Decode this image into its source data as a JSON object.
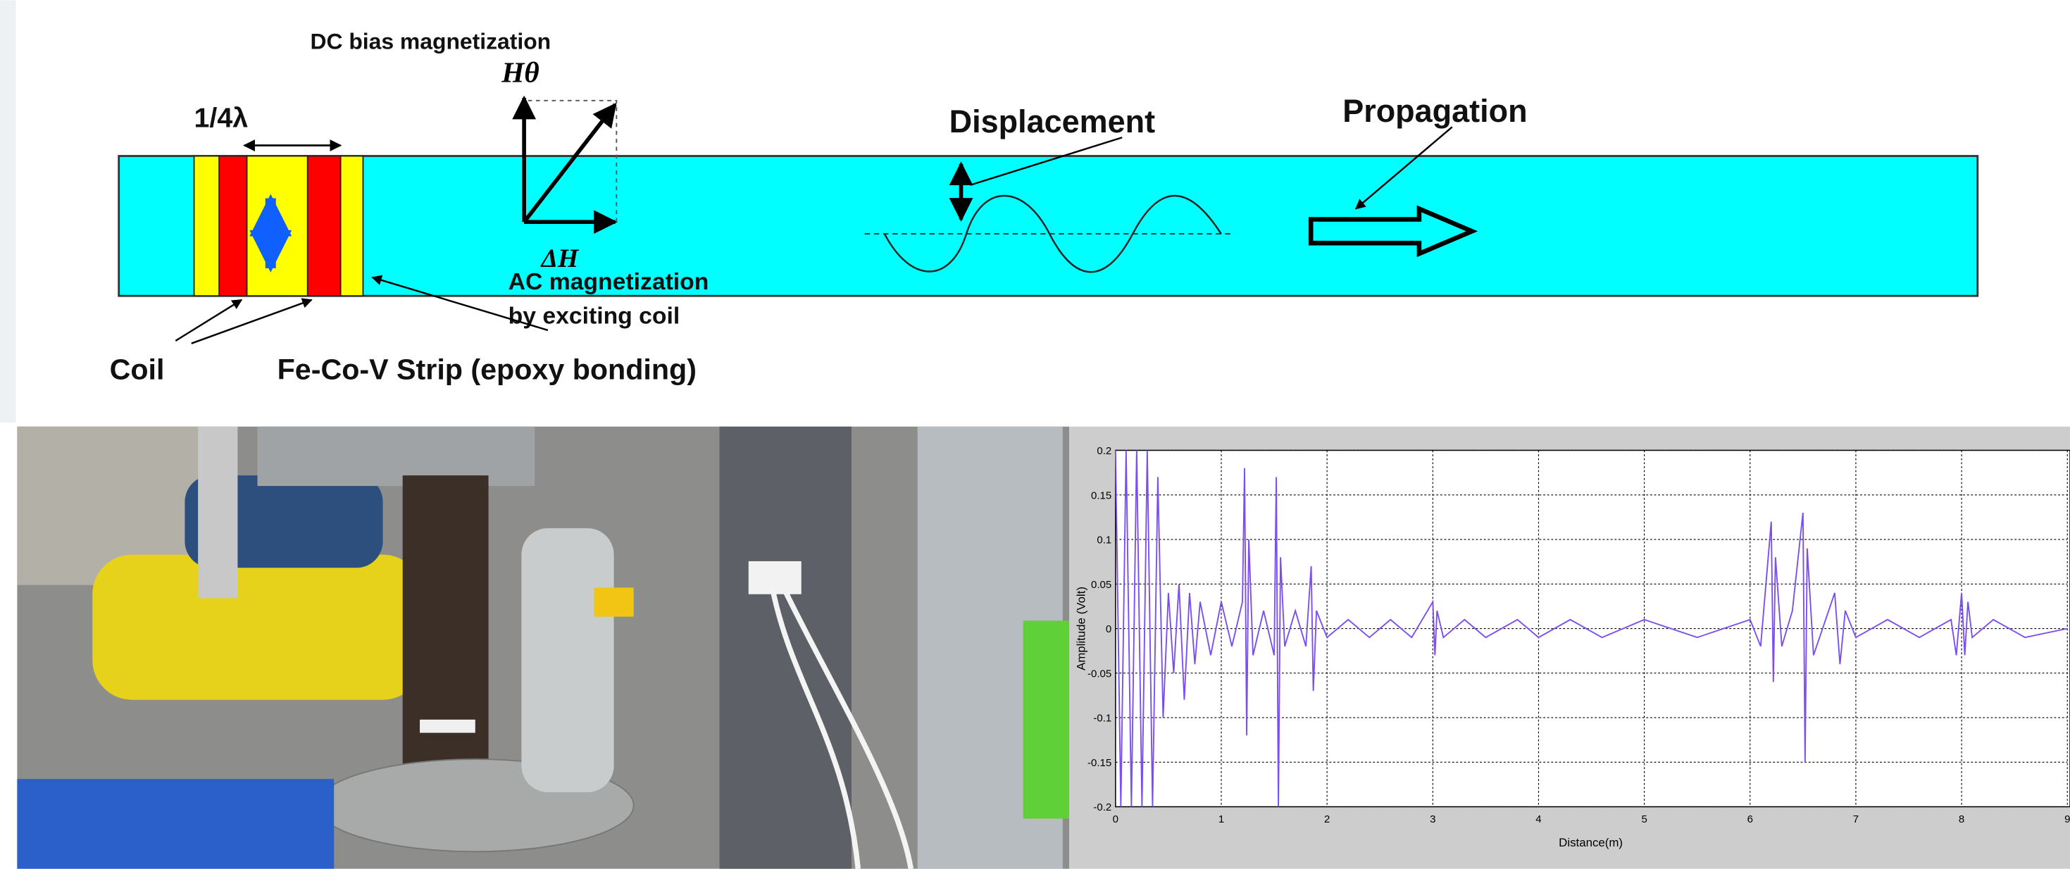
{
  "diagram": {
    "dc_bias": "DC bias magnetization",
    "h0": "Hθ",
    "quarter_lambda": "1/4λ",
    "displacement": "Displacement",
    "propagation": "Propagation",
    "delta_h": "ΔH",
    "ac_magnetization": "AC magnetization",
    "exciting_coil": "by exciting coil",
    "coil": "Coil",
    "strip": "Fe-Co-V Strip (epoxy bonding)"
  },
  "chart": {
    "type": "line",
    "x_label": "Distance(m)",
    "y_label": "Amplitude (Volt)",
    "xlim": [
      0,
      9
    ],
    "ylim": [
      -0.2,
      0.2
    ],
    "xticks": [
      0,
      1,
      2,
      3,
      4,
      5,
      6,
      7,
      8,
      9
    ],
    "yticks": [
      0.2,
      0.15,
      0.1,
      0.05,
      0,
      -0.05,
      -0.1,
      -0.15,
      -0.2
    ],
    "grid": true,
    "color": "#7a4ef0",
    "x": [
      0,
      0.05,
      0.1,
      0.15,
      0.2,
      0.25,
      0.3,
      0.35,
      0.4,
      0.45,
      0.5,
      0.55,
      0.6,
      0.65,
      0.7,
      0.75,
      0.8,
      0.9,
      1.0,
      1.1,
      1.2,
      1.22,
      1.24,
      1.26,
      1.3,
      1.4,
      1.5,
      1.52,
      1.54,
      1.56,
      1.6,
      1.7,
      1.8,
      1.85,
      1.87,
      1.9,
      2.0,
      2.2,
      2.4,
      2.6,
      2.8,
      3.0,
      3.02,
      3.04,
      3.1,
      3.3,
      3.5,
      3.8,
      4.0,
      4.3,
      4.6,
      5.0,
      5.5,
      6.0,
      6.1,
      6.2,
      6.22,
      6.24,
      6.3,
      6.4,
      6.5,
      6.52,
      6.54,
      6.6,
      6.8,
      6.85,
      6.9,
      7.0,
      7.3,
      7.6,
      7.9,
      7.95,
      8.0,
      8.03,
      8.06,
      8.1,
      8.3,
      8.6,
      9.0
    ],
    "values": [
      0.2,
      -0.2,
      0.2,
      -0.2,
      0.2,
      -0.2,
      0.2,
      -0.2,
      0.17,
      -0.1,
      0.04,
      -0.05,
      0.05,
      -0.08,
      0.04,
      -0.04,
      0.03,
      -0.03,
      0.03,
      -0.02,
      0.03,
      0.18,
      -0.12,
      0.1,
      -0.03,
      0.02,
      -0.03,
      0.17,
      -0.2,
      0.08,
      -0.02,
      0.02,
      -0.02,
      0.07,
      -0.07,
      0.02,
      -0.01,
      0.01,
      -0.01,
      0.01,
      -0.01,
      0.03,
      -0.03,
      0.02,
      -0.01,
      0.01,
      -0.01,
      0.01,
      -0.01,
      0.01,
      -0.01,
      0.01,
      -0.01,
      0.01,
      -0.02,
      0.12,
      -0.06,
      0.08,
      -0.02,
      0.02,
      0.13,
      -0.15,
      0.09,
      -0.03,
      0.04,
      -0.04,
      0.02,
      -0.01,
      0.01,
      -0.01,
      0.01,
      -0.03,
      0.04,
      -0.03,
      0.03,
      -0.01,
      0.01,
      -0.01,
      0
    ]
  }
}
